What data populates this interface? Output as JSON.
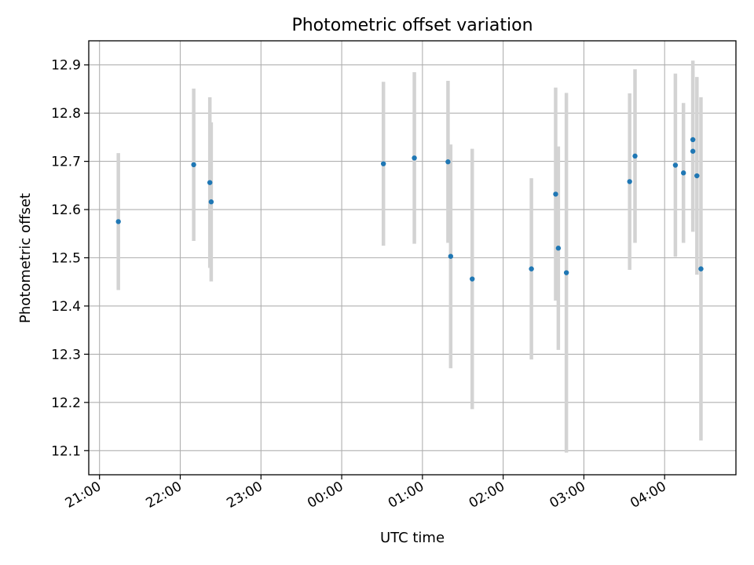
{
  "chart_data": {
    "type": "scatter",
    "title": "Photometric offset variation",
    "xlabel": "UTC time",
    "ylabel": "Photometric offset",
    "xlim": [
      "20:52",
      "28:53"
    ],
    "ylim": [
      12.05,
      12.95
    ],
    "grid": true,
    "x_ticks": [
      {
        "label": "21:00",
        "value": "21:00"
      },
      {
        "label": "22:00",
        "value": "22:00"
      },
      {
        "label": "23:00",
        "value": "23:00"
      },
      {
        "label": "00:00",
        "value": "24:00"
      },
      {
        "label": "01:00",
        "value": "25:00"
      },
      {
        "label": "02:00",
        "value": "26:00"
      },
      {
        "label": "03:00",
        "value": "27:00"
      },
      {
        "label": "04:00",
        "value": "28:00"
      }
    ],
    "y_ticks": [
      12.1,
      12.2,
      12.3,
      12.4,
      12.5,
      12.6,
      12.7,
      12.8,
      12.9
    ],
    "colors": {
      "points": "#1f77b4",
      "error_bars": "#d3d3d3",
      "grid": "#b0b0b0"
    },
    "points": [
      {
        "x": "21:14",
        "y": 12.575,
        "err": 0.142
      },
      {
        "x": "22:10",
        "y": 12.693,
        "err": 0.158
      },
      {
        "x": "22:22",
        "y": 12.656,
        "err": 0.177
      },
      {
        "x": "22:23",
        "y": 12.616,
        "err": 0.165
      },
      {
        "x": "00:31",
        "y": 12.695,
        "err": 0.17
      },
      {
        "x": "00:54",
        "y": 12.707,
        "err": 0.178
      },
      {
        "x": "01:19",
        "y": 12.699,
        "err": 0.168
      },
      {
        "x": "01:21",
        "y": 12.503,
        "err": 0.232
      },
      {
        "x": "01:37",
        "y": 12.456,
        "err": 0.27
      },
      {
        "x": "02:21",
        "y": 12.477,
        "err": 0.188
      },
      {
        "x": "02:39",
        "y": 12.632,
        "err": 0.221
      },
      {
        "x": "02:41",
        "y": 12.52,
        "err": 0.211
      },
      {
        "x": "02:47",
        "y": 12.469,
        "err": 0.373
      },
      {
        "x": "03:34",
        "y": 12.658,
        "err": 0.183
      },
      {
        "x": "03:38",
        "y": 12.711,
        "err": 0.18
      },
      {
        "x": "04:08",
        "y": 12.692,
        "err": 0.19
      },
      {
        "x": "04:14",
        "y": 12.676,
        "err": 0.145
      },
      {
        "x": "04:21",
        "y": 12.745,
        "err": 0.164
      },
      {
        "x": "04:21",
        "y": 12.721,
        "err": 0.167
      },
      {
        "x": "04:24",
        "y": 12.67,
        "err": 0.205
      },
      {
        "x": "04:27",
        "y": 12.477,
        "err": 0.356
      }
    ]
  }
}
